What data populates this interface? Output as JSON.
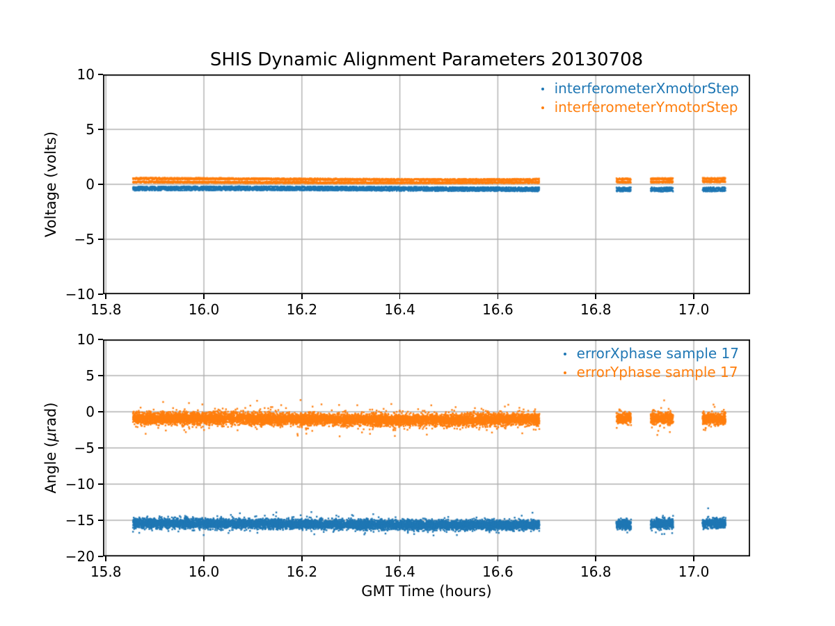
{
  "figure": {
    "title": "SHIS Dynamic Alignment Parameters 20130708",
    "xlabel": "GMT Time (hours)",
    "background": "#ffffff",
    "grid_color": "#b0b0b0",
    "spine_color": "#000000",
    "accent_blue": "#1f77b4",
    "accent_orange": "#ff7f0e"
  },
  "chart_data": [
    {
      "type": "scatter",
      "position": "top",
      "ylabel": "Voltage (volts)",
      "xlim": [
        15.794,
        17.115
      ],
      "ylim": [
        -10,
        10
      ],
      "xtick_labels": [
        "15.8",
        "16.0",
        "16.2",
        "16.4",
        "16.6",
        "16.8",
        "17.0"
      ],
      "xtick_values": [
        15.8,
        16.0,
        16.2,
        16.4,
        16.6,
        16.8,
        17.0
      ],
      "ytick_labels": [
        "10",
        "5",
        "0",
        "−5",
        "−10"
      ],
      "ytick_values": [
        10,
        5,
        0,
        -5,
        -10
      ],
      "grid": true,
      "legend_loc": "upper right",
      "marker": "point",
      "x_segments": [
        [
          15.855,
          16.685
        ],
        [
          16.842,
          16.872
        ],
        [
          16.912,
          16.958
        ],
        [
          17.018,
          17.065
        ]
      ],
      "series": [
        {
          "name": "interferometerXmotorStep",
          "color": "#1f77b4",
          "style": "band",
          "tracks": [
            {
              "center": -0.42,
              "halfwidth": 0.2,
              "wobble_amp": 0.05,
              "wobble_freq": 4.0,
              "wobble_phase": 0.5,
              "density": 7
            }
          ]
        },
        {
          "name": "interferometerYmotorStep",
          "color": "#ff7f0e",
          "style": "band",
          "tracks": [
            {
              "center": 0.47,
              "halfwidth": 0.09,
              "wobble_amp": 0.05,
              "wobble_freq": 5.0,
              "wobble_phase": 1.2,
              "density": 4
            },
            {
              "center": 0.21,
              "halfwidth": 0.09,
              "wobble_amp": 0.06,
              "wobble_freq": 3.2,
              "wobble_phase": 2.8,
              "density": 4
            }
          ]
        }
      ]
    },
    {
      "type": "scatter",
      "position": "bottom",
      "ylabel": "Angle (μrad)",
      "ylabel_parts": {
        "pre": "Angle (",
        "mu": "μ",
        "post": "rad)"
      },
      "xlim": [
        15.794,
        17.115
      ],
      "ylim": [
        -20,
        10
      ],
      "xtick_labels": [
        "15.8",
        "16.0",
        "16.2",
        "16.4",
        "16.6",
        "16.8",
        "17.0"
      ],
      "xtick_values": [
        15.8,
        16.0,
        16.2,
        16.4,
        16.6,
        16.8,
        17.0
      ],
      "ytick_labels": [
        "10",
        "5",
        "0",
        "−5",
        "−10",
        "−15",
        "−20"
      ],
      "ytick_values": [
        10,
        5,
        0,
        -5,
        -10,
        -15,
        -20
      ],
      "grid": true,
      "legend_loc": "upper right",
      "marker": "point",
      "x_segments": [
        [
          15.855,
          16.685
        ],
        [
          16.842,
          16.872
        ],
        [
          16.912,
          16.958
        ],
        [
          17.018,
          17.065
        ]
      ],
      "series": [
        {
          "name": "errorXphase sample 17",
          "color": "#1f77b4",
          "style": "cloud",
          "center": -15.55,
          "sigma": 0.33,
          "wobble_amp": 0.1,
          "wobble_freq": 5.0,
          "wobble_phase": 1.0,
          "outlier_rate": 0.01,
          "outlier_extra": 0.9,
          "density": 14
        },
        {
          "name": "errorYphase sample 17",
          "color": "#ff7f0e",
          "style": "cloud",
          "center": -1.02,
          "sigma": 0.42,
          "wobble_amp": 0.12,
          "wobble_freq": 7.0,
          "wobble_phase": 0.3,
          "outlier_rate": 0.015,
          "outlier_extra": 1.2,
          "density": 14
        }
      ]
    }
  ]
}
